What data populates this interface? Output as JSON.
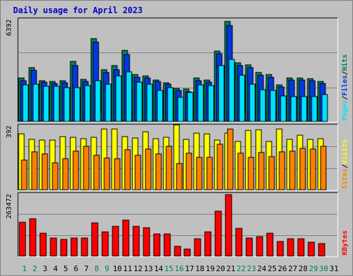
{
  "title": "Daily usage for April 2023",
  "colors": {
    "hits": "#00805c",
    "files": "#0038e0",
    "pages": "#00e0ff",
    "visits": "#ffff00",
    "sites": "#ff8000",
    "kbytes": "#ff0000",
    "weekend_label": "#00805c",
    "weekday_label": "#000000"
  },
  "chart_data": [
    {
      "type": "bar",
      "name": "hits-files-pages",
      "max_label": "6392",
      "ylim": [
        0,
        6392
      ],
      "legend": [
        {
          "text": "Pages",
          "color": "#00e0ff"
        },
        {
          "text": "Files",
          "color": "#0038e0"
        },
        {
          "text": "Hits",
          "color": "#00805c"
        }
      ],
      "legend_sep": "/",
      "categories": [
        "1",
        "2",
        "3",
        "4",
        "5",
        "6",
        "7",
        "8",
        "9",
        "10",
        "11",
        "12",
        "13",
        "14",
        "15",
        "16",
        "17",
        "18",
        "19",
        "20",
        "21",
        "22",
        "23",
        "24",
        "25",
        "26",
        "27",
        "28",
        "29",
        "30",
        "31"
      ],
      "series": [
        {
          "name": "Hits",
          "values": [
            2730,
            3390,
            2580,
            2540,
            2580,
            3780,
            2640,
            5210,
            3260,
            3510,
            4490,
            2940,
            2880,
            2620,
            2440,
            2090,
            2060,
            2730,
            2600,
            4440,
            6300,
            3700,
            3560,
            3100,
            2950,
            2300,
            2760,
            2760,
            2690,
            2520,
            0
          ]
        },
        {
          "name": "Files",
          "values": [
            2560,
            3210,
            2480,
            2390,
            2440,
            3530,
            2540,
            4990,
            3090,
            3280,
            4200,
            2800,
            2740,
            2510,
            2340,
            1960,
            1880,
            2570,
            2480,
            4250,
            6030,
            3510,
            3390,
            2910,
            2790,
            2170,
            2610,
            2610,
            2560,
            2400,
            0
          ]
        },
        {
          "name": "Pages",
          "values": [
            2300,
            2340,
            2210,
            2210,
            2120,
            2120,
            2240,
            2550,
            2350,
            2890,
            3110,
            2480,
            2340,
            1940,
            2120,
            1520,
            1830,
            2300,
            2270,
            3510,
            3930,
            2930,
            2330,
            1980,
            1940,
            1590,
            1580,
            1580,
            1550,
            1700,
            0
          ]
        }
      ]
    },
    {
      "type": "bar",
      "name": "visits-sites",
      "max_label": "392",
      "ylim": [
        0,
        392
      ],
      "legend": [
        {
          "text": "Sites",
          "color": "#ff8000"
        },
        {
          "text": "Visits",
          "color": "#ffff00"
        }
      ],
      "legend_sep": "/",
      "categories": [
        "1",
        "2",
        "3",
        "4",
        "5",
        "6",
        "7",
        "8",
        "9",
        "10",
        "11",
        "12",
        "13",
        "14",
        "15",
        "16",
        "17",
        "18",
        "19",
        "20",
        "21",
        "22",
        "23",
        "24",
        "25",
        "26",
        "27",
        "28",
        "29",
        "30",
        "31"
      ],
      "series": [
        {
          "name": "Visits",
          "values": [
            345,
            310,
            305,
            305,
            330,
            325,
            315,
            325,
            375,
            375,
            330,
            320,
            360,
            315,
            325,
            400,
            310,
            350,
            345,
            305,
            350,
            300,
            365,
            370,
            300,
            375,
            310,
            335,
            310,
            315,
            0
          ]
        },
        {
          "name": "Sites",
          "values": [
            185,
            235,
            220,
            165,
            190,
            240,
            270,
            215,
            195,
            190,
            245,
            215,
            250,
            220,
            270,
            160,
            225,
            200,
            200,
            280,
            375,
            225,
            200,
            230,
            205,
            235,
            240,
            255,
            250,
            270,
            0
          ]
        }
      ]
    },
    {
      "type": "bar",
      "name": "kbytes",
      "max_label": "263472",
      "ylim": [
        0,
        263472
      ],
      "legend": [
        {
          "text": "KBytes",
          "color": "#ff0000"
        }
      ],
      "categories": [
        "1",
        "2",
        "3",
        "4",
        "5",
        "6",
        "7",
        "8",
        "9",
        "10",
        "11",
        "12",
        "13",
        "14",
        "15",
        "16",
        "17",
        "18",
        "19",
        "20",
        "21",
        "22",
        "23",
        "24",
        "25",
        "26",
        "27",
        "28",
        "29",
        "30",
        "31"
      ],
      "series": [
        {
          "name": "KBytes",
          "values": [
            146000,
            159000,
            98000,
            78000,
            72000,
            77000,
            77000,
            143000,
            103000,
            127000,
            153000,
            126000,
            120000,
            96000,
            96000,
            40000,
            30000,
            74000,
            103000,
            192000,
            263000,
            117000,
            76000,
            82000,
            99000,
            63000,
            75000,
            75000,
            58000,
            53000,
            0
          ]
        }
      ]
    }
  ]
}
